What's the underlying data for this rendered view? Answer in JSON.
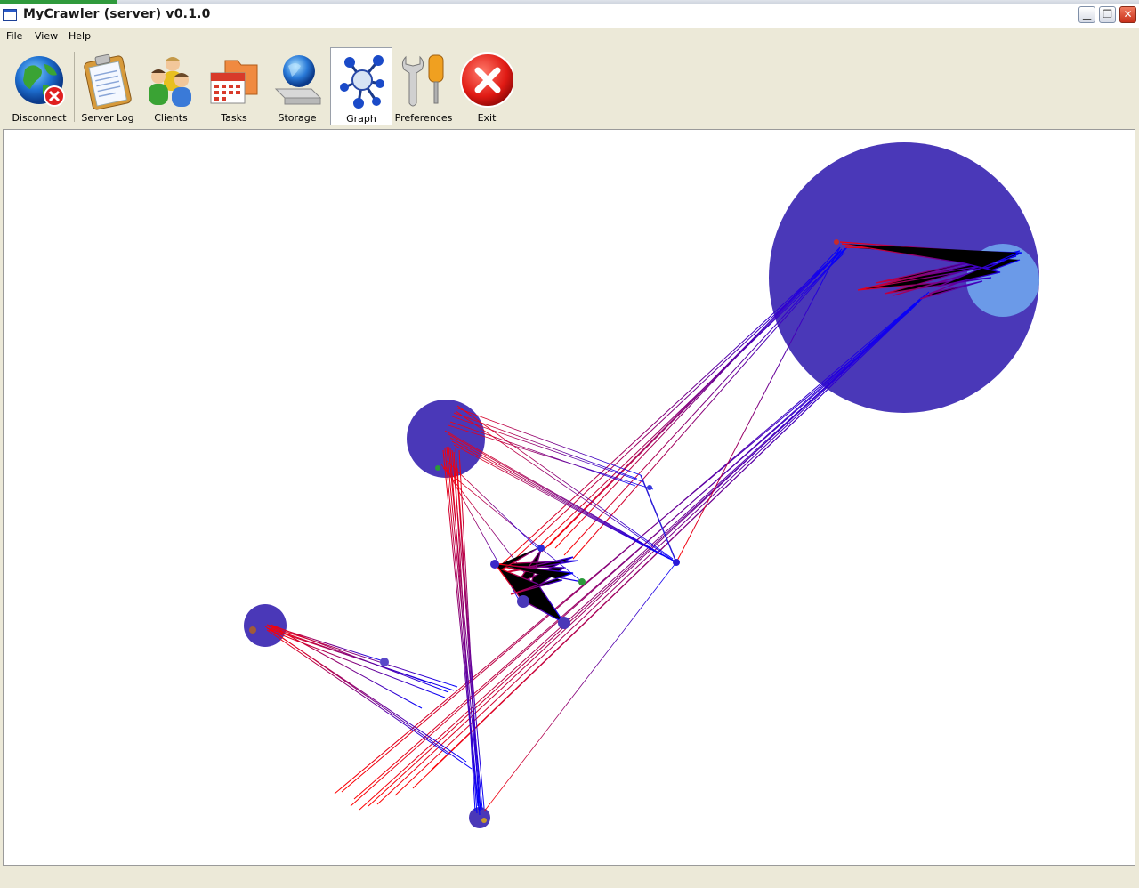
{
  "window": {
    "title": "MyCrawler (server) v0.1.0",
    "controls": {
      "minimize": "▁",
      "restore": "❐",
      "close": "✕"
    }
  },
  "menu": [
    "File",
    "View",
    "Help"
  ],
  "toolbar": {
    "items": [
      {
        "label": "Disconnect",
        "icon": "globe-disconnect-icon"
      },
      {
        "label": "Server Log",
        "icon": "clipboard-icon"
      },
      {
        "label": "Clients",
        "icon": "users-icon"
      },
      {
        "label": "Tasks",
        "icon": "calendar-folder-icon"
      },
      {
        "label": "Storage",
        "icon": "globe-drive-icon"
      },
      {
        "label": "Graph",
        "icon": "molecule-graph-icon",
        "active": true
      },
      {
        "label": "Preferences",
        "icon": "tools-icon"
      },
      {
        "label": "Exit",
        "icon": "exit-icon"
      }
    ]
  },
  "colors": {
    "node_fill": "#4a38b8",
    "node_light": "#6b9ae8",
    "edge_start": "#ff0000",
    "edge_end": "#0000ff"
  }
}
